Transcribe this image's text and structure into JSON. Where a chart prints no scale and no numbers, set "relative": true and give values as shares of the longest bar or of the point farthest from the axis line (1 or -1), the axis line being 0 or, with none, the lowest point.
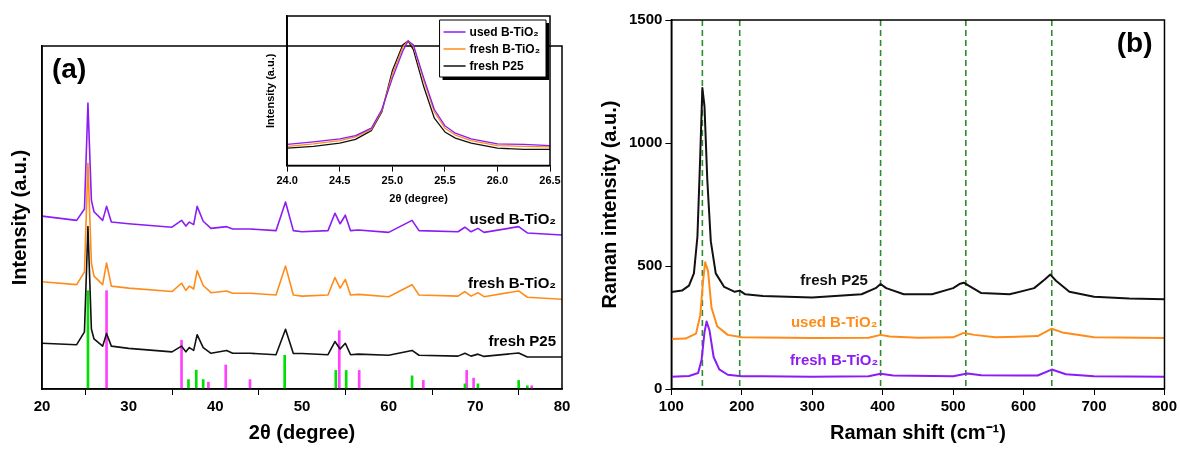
{
  "chart_data": [
    {
      "type": "line",
      "relative": true,
      "xlabel": "2θ (degree)",
      "ylabel": "Intensity (a.u.)",
      "xlim": [
        20,
        80
      ],
      "xticks": [
        20,
        30,
        40,
        50,
        60,
        70,
        80
      ],
      "legend": false,
      "marker": "none",
      "annotations": [
        "(a)"
      ],
      "x": [
        20,
        24,
        24.9,
        25.3,
        25.7,
        26,
        27,
        27.45,
        28,
        30,
        35,
        36.1,
        36.6,
        37,
        37.5,
        37.9,
        38.6,
        39.5,
        41.3,
        42,
        44,
        47,
        48.1,
        49,
        50,
        53,
        53.8,
        54.4,
        55,
        55.6,
        56.5,
        60,
        62.7,
        63.5,
        68,
        68.8,
        69.5,
        70.3,
        71,
        75,
        76,
        80
      ],
      "series": [
        {
          "name": "used B-TiO₂",
          "color": "#8b1cf5",
          "values": [
            0.605,
            0.59,
            0.63,
            1.0,
            0.66,
            0.62,
            0.59,
            0.639,
            0.584,
            0.578,
            0.566,
            0.59,
            0.57,
            0.584,
            0.575,
            0.639,
            0.587,
            0.562,
            0.568,
            0.56,
            0.56,
            0.554,
            0.654,
            0.554,
            0.55,
            0.554,
            0.615,
            0.578,
            0.608,
            0.554,
            0.556,
            0.548,
            0.59,
            0.554,
            0.55,
            0.566,
            0.55,
            0.562,
            0.548,
            0.568,
            0.546,
            0.539
          ]
        },
        {
          "name": "fresh B-TiO₂",
          "color": "#ff8c1a",
          "values": [
            0.375,
            0.365,
            0.41,
            0.79,
            0.44,
            0.395,
            0.365,
            0.441,
            0.36,
            0.353,
            0.341,
            0.37,
            0.345,
            0.36,
            0.35,
            0.414,
            0.362,
            0.337,
            0.343,
            0.335,
            0.335,
            0.329,
            0.43,
            0.329,
            0.325,
            0.329,
            0.39,
            0.353,
            0.383,
            0.329,
            0.331,
            0.323,
            0.365,
            0.329,
            0.325,
            0.341,
            0.325,
            0.337,
            0.323,
            0.343,
            0.321,
            0.314
          ]
        },
        {
          "name": "fresh P25",
          "color": "#111111",
          "values": [
            0.16,
            0.155,
            0.2,
            0.568,
            0.21,
            0.175,
            0.15,
            0.194,
            0.15,
            0.142,
            0.13,
            0.15,
            0.13,
            0.145,
            0.135,
            0.19,
            0.145,
            0.125,
            0.135,
            0.125,
            0.125,
            0.12,
            0.209,
            0.124,
            0.124,
            0.12,
            0.166,
            0.14,
            0.16,
            0.12,
            0.122,
            0.118,
            0.135,
            0.118,
            0.115,
            0.125,
            0.115,
            0.122,
            0.114,
            0.126,
            0.112,
            0.112
          ]
        },
        {
          "type": "bar",
          "color": "#00e000",
          "x": [
            25.3,
            36.9,
            37.8,
            38.6,
            48.0,
            53.9,
            55.1,
            62.1,
            62.7,
            68.8,
            70.3,
            75.0,
            76.0
          ],
          "values": [
            0.344,
            0.033,
            0.066,
            0.033,
            0.118,
            0.065,
            0.065,
            null,
            0.046,
            0.018,
            0.018,
            0.03,
            0.011
          ]
        },
        {
          "type": "bar",
          "color": "#ff40ff",
          "x": [
            27.45,
            36.1,
            39.2,
            41.2,
            44.0,
            54.3,
            56.6,
            64.0,
            69.0,
            69.8,
            76.5
          ],
          "values": [
            0.344,
            0.17,
            0.024,
            0.084,
            0.033,
            0.204,
            0.065,
            0.03,
            0.065,
            0.038,
            0.011
          ]
        }
      ]
    },
    {
      "type": "line",
      "relative": true,
      "xlabel": "2θ (degree)",
      "ylabel": "Intensity (a.u.)",
      "xlim": [
        24,
        26.5
      ],
      "xticks": [
        {
          "value": 24,
          "label": "24.0"
        },
        {
          "value": 24.5,
          "label": "24.5"
        },
        {
          "value": 25,
          "label": "25.0"
        },
        {
          "value": 25.5,
          "label": "25.5"
        },
        {
          "value": 26,
          "label": "26.0"
        },
        {
          "value": 26.5,
          "label": "26.5"
        }
      ],
      "legend": "top right",
      "marker": "none",
      "x": [
        24.0,
        24.25,
        24.5,
        24.65,
        24.8,
        24.9,
        25.0,
        25.1,
        25.15,
        25.2,
        25.3,
        25.4,
        25.5,
        25.6,
        25.75,
        26.0,
        26.25,
        26.5
      ],
      "series": [
        {
          "name": "used B-TiO₂",
          "color": "#8b1cf5",
          "values": [
            0.17,
            0.19,
            0.214,
            0.24,
            0.3,
            0.45,
            0.7,
            0.92,
            1.0,
            0.97,
            0.7,
            0.45,
            0.32,
            0.26,
            0.214,
            0.175,
            0.17,
            0.16
          ]
        },
        {
          "name": "fresh B-TiO₂",
          "color": "#ff8c1a",
          "values": [
            0.155,
            0.175,
            0.2,
            0.23,
            0.29,
            0.44,
            0.73,
            0.95,
            1.0,
            0.96,
            0.68,
            0.43,
            0.3,
            0.245,
            0.2,
            0.16,
            0.155,
            0.15
          ]
        },
        {
          "name": "fresh P25",
          "color": "#111111",
          "values": [
            0.14,
            0.155,
            0.18,
            0.21,
            0.28,
            0.43,
            0.76,
            0.97,
            1.0,
            0.93,
            0.63,
            0.38,
            0.27,
            0.22,
            0.18,
            0.14,
            0.13,
            0.13
          ]
        }
      ]
    },
    {
      "type": "line",
      "xlabel": "Raman shift (cm⁻¹)",
      "ylabel": "Raman intensity (a.u.)",
      "xlim": [
        100,
        800
      ],
      "xticks": [
        100,
        200,
        300,
        400,
        500,
        600,
        700,
        800
      ],
      "ylim": [
        0,
        1500
      ],
      "yticks": [
        0,
        500,
        1000,
        1500
      ],
      "legend": false,
      "marker": "none",
      "annotations": [
        "(b)"
      ],
      "ref_lines": [
        {
          "axis": "x",
          "value": 144,
          "color": "#2e8b2e",
          "line_style": "dashed"
        },
        {
          "axis": "x",
          "value": 197,
          "color": "#2e8b2e",
          "line_style": "dashed"
        },
        {
          "axis": "x",
          "value": 397,
          "color": "#2e8b2e",
          "line_style": "dashed"
        },
        {
          "axis": "x",
          "value": 518,
          "color": "#2e8b2e",
          "line_style": "dashed"
        },
        {
          "axis": "x",
          "value": 640,
          "color": "#2e8b2e",
          "line_style": "dashed"
        }
      ],
      "series": [
        {
          "name": "fresh P25",
          "color": "#111111",
          "x": [
            100,
            115,
            125,
            132,
            137,
            141,
            144,
            147,
            151,
            156,
            163,
            175,
            190,
            197,
            205,
            230,
            300,
            370,
            390,
            397,
            405,
            430,
            470,
            500,
            510,
            515,
            522,
            540,
            580,
            615,
            630,
            638,
            646,
            665,
            700,
            750,
            800
          ],
          "values": [
            394,
            400,
            420,
            470,
            620,
            950,
            1224,
            1150,
            850,
            600,
            470,
            415,
            395,
            400,
            385,
            378,
            372,
            385,
            410,
            427,
            410,
            385,
            385,
            410,
            428,
            432,
            420,
            390,
            385,
            410,
            445,
            465,
            440,
            395,
            375,
            368,
            365
          ]
        },
        {
          "name": "used B-TiO₂",
          "color": "#ff8c1a",
          "x": [
            100,
            120,
            135,
            141,
            145,
            148,
            152,
            157,
            165,
            180,
            200,
            300,
            380,
            397,
            410,
            450,
            500,
            515,
            530,
            560,
            620,
            640,
            655,
            700,
            800
          ],
          "values": [
            203,
            205,
            225,
            300,
            440,
            515,
            480,
            330,
            255,
            220,
            210,
            207,
            208,
            220,
            213,
            208,
            210,
            228,
            220,
            210,
            215,
            245,
            230,
            210,
            207
          ]
        },
        {
          "name": "fresh B-TiO₂",
          "color": "#8b1cf5",
          "x": [
            100,
            125,
            138,
            143,
            147,
            150,
            154,
            160,
            168,
            180,
            200,
            300,
            380,
            397,
            415,
            500,
            520,
            540,
            620,
            640,
            660,
            700,
            800
          ],
          "values": [
            50,
            53,
            65,
            120,
            230,
            274,
            240,
            130,
            80,
            58,
            52,
            50,
            52,
            62,
            55,
            52,
            63,
            56,
            55,
            79,
            60,
            52,
            50
          ]
        }
      ]
    }
  ]
}
